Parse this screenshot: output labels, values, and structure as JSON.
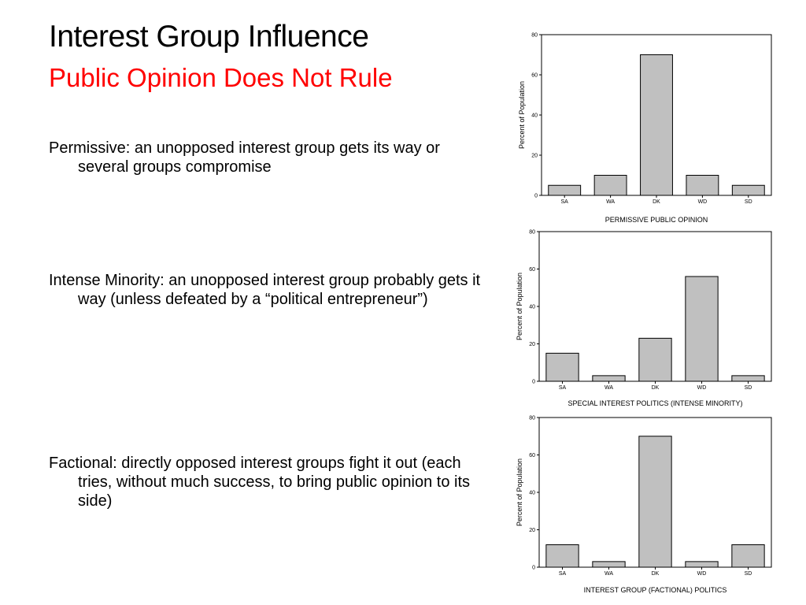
{
  "slide": {
    "title": "Interest Group Influence",
    "subtitle": "Public Opinion Does Not Rule",
    "bullets": [
      "Permissive: an unopposed interest group gets its way or several groups compromise",
      "Intense Minority: an unopposed interest group probably gets it way (unless defeated by a “political entrepreneur”)",
      "Factional: directly opposed interest groups fight it out (each tries, without much success, to bring public opinion to its side)"
    ]
  },
  "colors": {
    "title": "#000000",
    "subtitle": "#ff0000",
    "bar": "#c0c0c0"
  },
  "chart_data": [
    {
      "type": "bar",
      "categories": [
        "SA",
        "WA",
        "DK",
        "WD",
        "SD"
      ],
      "values": [
        5,
        10,
        70,
        10,
        5
      ],
      "title": "",
      "xlabel": "PERMISSIVE PUBLIC OPINION",
      "ylabel": "Percent of Population",
      "ylim": [
        0,
        80
      ],
      "yticks": [
        0,
        20,
        40,
        60,
        80
      ],
      "grid": false
    },
    {
      "type": "bar",
      "categories": [
        "SA",
        "WA",
        "DK",
        "WD",
        "SD"
      ],
      "values": [
        15,
        3,
        23,
        56,
        3
      ],
      "title": "",
      "xlabel": "SPECIAL INTEREST POLITICS (INTENSE MINORITY)",
      "ylabel": "Percent of Population",
      "ylim": [
        0,
        80
      ],
      "yticks": [
        0,
        20,
        40,
        60,
        80
      ],
      "grid": false
    },
    {
      "type": "bar",
      "categories": [
        "SA",
        "WA",
        "DK",
        "WD",
        "SD"
      ],
      "values": [
        12,
        3,
        70,
        3,
        12
      ],
      "title": "",
      "xlabel": "INTEREST GROUP (FACTIONAL) POLITICS",
      "ylabel": "Percent of Population",
      "ylim": [
        0,
        80
      ],
      "yticks": [
        0,
        20,
        40,
        60,
        80
      ],
      "grid": false
    }
  ]
}
